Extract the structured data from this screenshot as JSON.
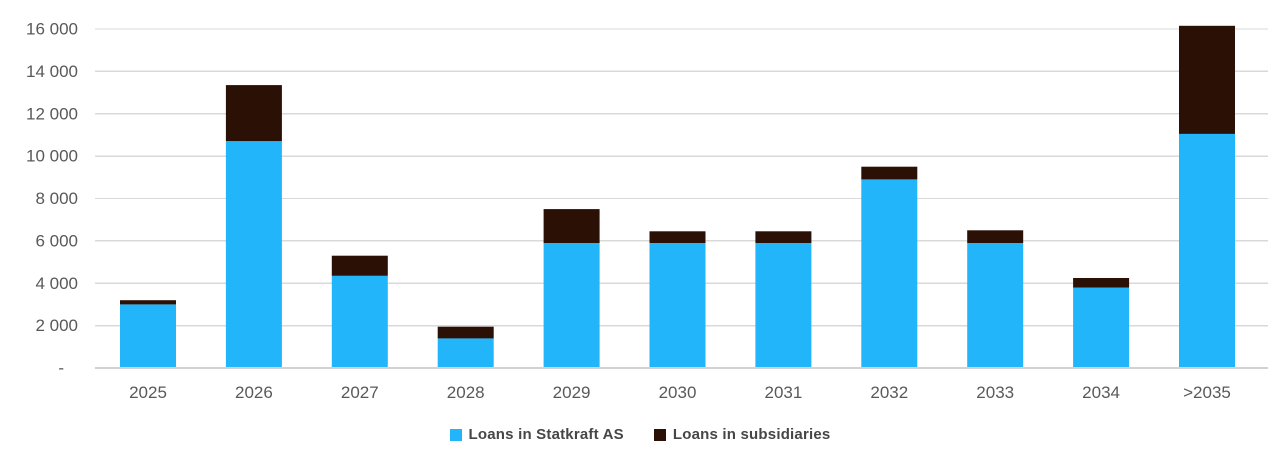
{
  "chart_data": {
    "type": "bar",
    "stacked": true,
    "title": "",
    "xlabel": "",
    "ylabel": "",
    "grid": true,
    "legend_position": "bottom",
    "categories": [
      "2025",
      "2026",
      "2027",
      "2028",
      "2029",
      "2030",
      "2031",
      "2032",
      "2033",
      "2034",
      ">2035"
    ],
    "series": [
      {
        "name": "Loans in Statkraft AS",
        "color": "#22B5FA",
        "values": [
          3000,
          10700,
          4350,
          1400,
          5900,
          5900,
          5900,
          8900,
          5900,
          3800,
          11050
        ]
      },
      {
        "name": "Loans in subsidiaries",
        "color": "#2B1005",
        "values": [
          200,
          2650,
          950,
          550,
          1600,
          550,
          550,
          600,
          600,
          450,
          5100
        ]
      }
    ],
    "totals": [
      3200,
      13350,
      5300,
      1950,
      7500,
      6450,
      6450,
      9500,
      6500,
      4250,
      16150
    ],
    "y_axis": {
      "min": 0,
      "max": 16000,
      "tick_interval": 2000,
      "ticks": [
        {
          "value": 0,
          "label": "-"
        },
        {
          "value": 2000,
          "label": "2 000"
        },
        {
          "value": 4000,
          "label": "4 000"
        },
        {
          "value": 6000,
          "label": "6 000"
        },
        {
          "value": 8000,
          "label": "8 000"
        },
        {
          "value": 10000,
          "label": "10 000"
        },
        {
          "value": 12000,
          "label": "12 000"
        },
        {
          "value": 14000,
          "label": "14 000"
        },
        {
          "value": 16000,
          "label": "16 000"
        }
      ]
    },
    "colors": {
      "gridline": "#D9D9D9",
      "axis_line": "#D2D2D2",
      "tick_label": "#595959",
      "legend_label": "#464646"
    }
  }
}
